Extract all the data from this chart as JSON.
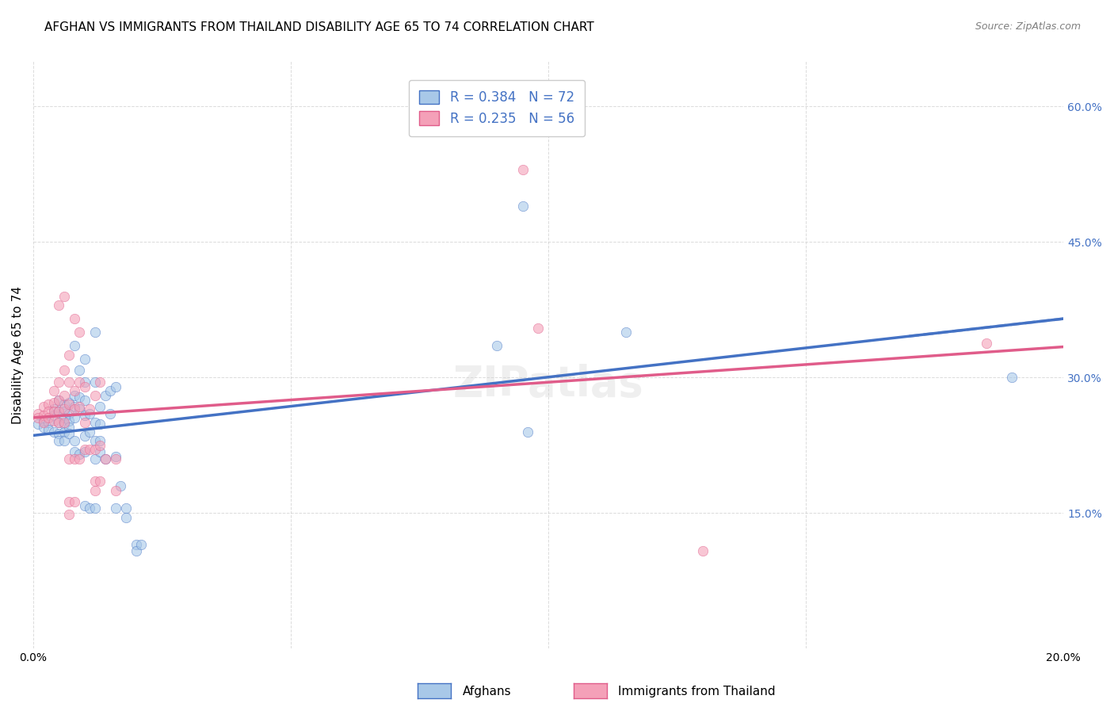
{
  "title": "AFGHAN VS IMMIGRANTS FROM THAILAND DISABILITY AGE 65 TO 74 CORRELATION CHART",
  "source": "Source: ZipAtlas.com",
  "ylabel": "Disability Age 65 to 74",
  "xlim": [
    0.0,
    0.2
  ],
  "ylim": [
    0.0,
    0.65
  ],
  "watermark": "ZIPatlas",
  "legend_label_1": "R = 0.384   N = 72",
  "legend_label_2": "R = 0.235   N = 56",
  "afghans_scatter": [
    [
      0.001,
      0.248
    ],
    [
      0.002,
      0.252
    ],
    [
      0.002,
      0.245
    ],
    [
      0.003,
      0.25
    ],
    [
      0.003,
      0.242
    ],
    [
      0.004,
      0.265
    ],
    [
      0.004,
      0.258
    ],
    [
      0.004,
      0.24
    ],
    [
      0.005,
      0.275
    ],
    [
      0.005,
      0.262
    ],
    [
      0.005,
      0.25
    ],
    [
      0.005,
      0.238
    ],
    [
      0.005,
      0.23
    ],
    [
      0.006,
      0.27
    ],
    [
      0.006,
      0.262
    ],
    [
      0.006,
      0.255
    ],
    [
      0.006,
      0.248
    ],
    [
      0.006,
      0.24
    ],
    [
      0.006,
      0.23
    ],
    [
      0.007,
      0.272
    ],
    [
      0.007,
      0.26
    ],
    [
      0.007,
      0.252
    ],
    [
      0.007,
      0.245
    ],
    [
      0.007,
      0.238
    ],
    [
      0.008,
      0.335
    ],
    [
      0.008,
      0.28
    ],
    [
      0.008,
      0.268
    ],
    [
      0.008,
      0.255
    ],
    [
      0.008,
      0.23
    ],
    [
      0.008,
      0.218
    ],
    [
      0.009,
      0.308
    ],
    [
      0.009,
      0.278
    ],
    [
      0.009,
      0.265
    ],
    [
      0.009,
      0.215
    ],
    [
      0.01,
      0.32
    ],
    [
      0.01,
      0.295
    ],
    [
      0.01,
      0.275
    ],
    [
      0.01,
      0.258
    ],
    [
      0.01,
      0.235
    ],
    [
      0.01,
      0.218
    ],
    [
      0.01,
      0.158
    ],
    [
      0.011,
      0.155
    ],
    [
      0.011,
      0.26
    ],
    [
      0.011,
      0.24
    ],
    [
      0.012,
      0.35
    ],
    [
      0.012,
      0.295
    ],
    [
      0.012,
      0.25
    ],
    [
      0.012,
      0.23
    ],
    [
      0.012,
      0.21
    ],
    [
      0.012,
      0.155
    ],
    [
      0.013,
      0.268
    ],
    [
      0.013,
      0.248
    ],
    [
      0.013,
      0.23
    ],
    [
      0.013,
      0.218
    ],
    [
      0.014,
      0.28
    ],
    [
      0.014,
      0.21
    ],
    [
      0.015,
      0.285
    ],
    [
      0.015,
      0.26
    ],
    [
      0.016,
      0.29
    ],
    [
      0.016,
      0.212
    ],
    [
      0.016,
      0.155
    ],
    [
      0.017,
      0.18
    ],
    [
      0.018,
      0.155
    ],
    [
      0.018,
      0.145
    ],
    [
      0.02,
      0.115
    ],
    [
      0.02,
      0.108
    ],
    [
      0.021,
      0.115
    ],
    [
      0.09,
      0.335
    ],
    [
      0.095,
      0.49
    ],
    [
      0.096,
      0.24
    ],
    [
      0.115,
      0.35
    ],
    [
      0.19,
      0.3
    ]
  ],
  "thailand_scatter": [
    [
      0.001,
      0.26
    ],
    [
      0.001,
      0.255
    ],
    [
      0.002,
      0.268
    ],
    [
      0.002,
      0.258
    ],
    [
      0.002,
      0.25
    ],
    [
      0.003,
      0.27
    ],
    [
      0.003,
      0.262
    ],
    [
      0.003,
      0.255
    ],
    [
      0.004,
      0.285
    ],
    [
      0.004,
      0.272
    ],
    [
      0.004,
      0.262
    ],
    [
      0.004,
      0.252
    ],
    [
      0.005,
      0.38
    ],
    [
      0.005,
      0.295
    ],
    [
      0.005,
      0.275
    ],
    [
      0.005,
      0.262
    ],
    [
      0.005,
      0.25
    ],
    [
      0.006,
      0.39
    ],
    [
      0.006,
      0.308
    ],
    [
      0.006,
      0.28
    ],
    [
      0.006,
      0.265
    ],
    [
      0.006,
      0.25
    ],
    [
      0.007,
      0.325
    ],
    [
      0.007,
      0.295
    ],
    [
      0.007,
      0.27
    ],
    [
      0.007,
      0.21
    ],
    [
      0.007,
      0.162
    ],
    [
      0.007,
      0.148
    ],
    [
      0.008,
      0.365
    ],
    [
      0.008,
      0.285
    ],
    [
      0.008,
      0.265
    ],
    [
      0.008,
      0.21
    ],
    [
      0.008,
      0.162
    ],
    [
      0.009,
      0.35
    ],
    [
      0.009,
      0.295
    ],
    [
      0.009,
      0.268
    ],
    [
      0.009,
      0.21
    ],
    [
      0.01,
      0.29
    ],
    [
      0.01,
      0.25
    ],
    [
      0.01,
      0.22
    ],
    [
      0.011,
      0.265
    ],
    [
      0.011,
      0.22
    ],
    [
      0.012,
      0.28
    ],
    [
      0.012,
      0.22
    ],
    [
      0.012,
      0.185
    ],
    [
      0.012,
      0.175
    ],
    [
      0.013,
      0.295
    ],
    [
      0.013,
      0.225
    ],
    [
      0.013,
      0.185
    ],
    [
      0.014,
      0.21
    ],
    [
      0.016,
      0.21
    ],
    [
      0.016,
      0.175
    ],
    [
      0.095,
      0.53
    ],
    [
      0.098,
      0.355
    ],
    [
      0.13,
      0.108
    ],
    [
      0.185,
      0.338
    ]
  ],
  "afghan_line_color": "#4472c4",
  "thailand_line_color": "#e05c8a",
  "afghan_dot_color": "#a8c8e8",
  "thailand_dot_color": "#f4a0b8",
  "background_color": "#ffffff",
  "grid_color": "#cccccc",
  "title_fontsize": 11,
  "axis_label_fontsize": 11,
  "tick_fontsize": 10,
  "dot_size": 80,
  "dot_alpha": 0.6,
  "line_width": 2.5,
  "right_axis_color": "#4472c4",
  "bottom_label_1": "Afghans",
  "bottom_label_2": "Immigrants from Thailand"
}
